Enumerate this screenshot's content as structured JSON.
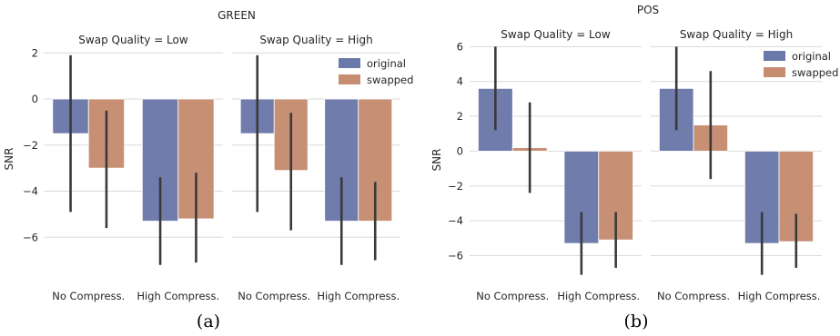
{
  "colors": {
    "original": "#6b78aa",
    "swapped": "#c68d71",
    "errbar": "#3a3a3a",
    "grid": "#d9d9d9"
  },
  "chart_data": [
    {
      "type": "bar",
      "title": "GREEN",
      "caption": "(a)",
      "ylabel": "SNR",
      "ylim": [
        -8,
        2.8
      ],
      "yticks": [
        2,
        0,
        -2,
        -4,
        -6
      ],
      "ytick_labels": [
        "2",
        "0",
        "−2",
        "−4",
        "−6"
      ],
      "legend_position": "top-right",
      "grid": true,
      "panels": [
        {
          "title": "Swap Quality = Low",
          "categories": [
            "No Compress.",
            "High Compress."
          ],
          "series": [
            {
              "name": "original",
              "values": [
                -1.5,
                -5.3
              ],
              "err_low": [
                -4.9,
                -7.2
              ],
              "err_high": [
                1.9,
                -3.4
              ]
            },
            {
              "name": "swapped",
              "values": [
                -3.0,
                -5.2
              ],
              "err_low": [
                -5.6,
                -7.1
              ],
              "err_high": [
                -0.5,
                -3.2
              ]
            }
          ]
        },
        {
          "title": "Swap Quality = High",
          "categories": [
            "No Compress.",
            "High Compress."
          ],
          "series": [
            {
              "name": "original",
              "values": [
                -1.5,
                -5.3
              ],
              "err_low": [
                -4.9,
                -7.2
              ],
              "err_high": [
                1.9,
                -3.4
              ]
            },
            {
              "name": "swapped",
              "values": [
                -3.1,
                -5.3
              ],
              "err_low": [
                -5.7,
                -7.0
              ],
              "err_high": [
                -0.6,
                -3.6
              ]
            }
          ]
        }
      ]
    },
    {
      "type": "bar",
      "title": "POS",
      "caption": "(b)",
      "ylabel": "SNR",
      "ylim": [
        -7.8,
        6.8
      ],
      "yticks": [
        6,
        4,
        2,
        0,
        -2,
        -4,
        -6
      ],
      "ytick_labels": [
        "6",
        "4",
        "2",
        "0",
        "−2",
        "−4",
        "−6"
      ],
      "legend_position": "top-right",
      "grid": true,
      "panels": [
        {
          "title": "Swap Quality = Low",
          "categories": [
            "No Compress.",
            "High Compress."
          ],
          "series": [
            {
              "name": "original",
              "values": [
                3.6,
                -5.3
              ],
              "err_low": [
                1.2,
                -7.1
              ],
              "err_high": [
                6.0,
                -3.5
              ]
            },
            {
              "name": "swapped",
              "values": [
                0.2,
                -5.1
              ],
              "err_low": [
                -2.4,
                -6.7
              ],
              "err_high": [
                2.8,
                -3.5
              ]
            }
          ]
        },
        {
          "title": "Swap Quality = High",
          "categories": [
            "No Compress.",
            "High Compress."
          ],
          "series": [
            {
              "name": "original",
              "values": [
                3.6,
                -5.3
              ],
              "err_low": [
                1.2,
                -7.1
              ],
              "err_high": [
                6.0,
                -3.5
              ]
            },
            {
              "name": "swapped",
              "values": [
                1.5,
                -5.2
              ],
              "err_low": [
                -1.6,
                -6.7
              ],
              "err_high": [
                4.6,
                -3.6
              ]
            }
          ]
        }
      ]
    }
  ]
}
